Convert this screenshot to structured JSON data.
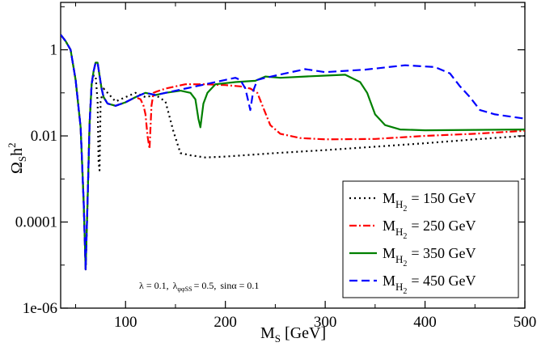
{
  "chart_data": {
    "type": "line",
    "title": "",
    "xlabel": "M",
    "xlabel_sub": "S",
    "xlabel_unit": "[GeV]",
    "ylabel": "Ω",
    "ylabel_sub": "S",
    "ylabel_tail": "h",
    "ylabel_sup": "2",
    "xlim": [
      35,
      500
    ],
    "ylim_log10": [
      -6,
      1.1
    ],
    "yscale": "log",
    "x_ticks": [
      100,
      200,
      300,
      400,
      500
    ],
    "x_tick_labels": [
      "100",
      "200",
      "300",
      "400",
      "500"
    ],
    "y_ticks_log10": [
      0,
      -2,
      -4,
      -6
    ],
    "y_tick_labels": [
      "1",
      "0.01",
      "0.0001",
      "1e-06"
    ],
    "legend_position": "bottom-right",
    "annotation": {
      "lambda": "λ = 0.1,",
      "lambda2_sym": "λ",
      "lambda2_sub": "φφSS",
      "lambda2_val": "= 0.5,",
      "sin": "sinα = 0.1"
    },
    "series": [
      {
        "name": "M_H2 = 150 GeV",
        "label_main": "M",
        "label_sub": "H",
        "label_subsub": "2",
        "label_value": "= 150 GeV",
        "color": "#000000",
        "dash": "2,4",
        "x": [
          35,
          40,
          45,
          50,
          55,
          58,
          60,
          62,
          64,
          66,
          68,
          70,
          72,
          73,
          74,
          75,
          78,
          82,
          90,
          100,
          110,
          120,
          130,
          140,
          148,
          155,
          165,
          180,
          200,
          250,
          300,
          350,
          400,
          450,
          500
        ],
        "y_log10": [
          0.35,
          0.2,
          0,
          -0.7,
          -1.8,
          -3.5,
          -5.1,
          -3.5,
          -1.7,
          -0.8,
          -0.6,
          -0.6,
          -1.2,
          -2.6,
          -2.8,
          -1.2,
          -0.9,
          -1.0,
          -1.2,
          -1.1,
          -1.0,
          -1.1,
          -1.05,
          -1.2,
          -1.9,
          -2.4,
          -2.45,
          -2.5,
          -2.48,
          -2.4,
          -2.33,
          -2.25,
          -2.17,
          -2.08,
          -2.0
        ]
      },
      {
        "name": "M_H2 = 250 GeV",
        "label_main": "M",
        "label_sub": "H",
        "label_subsub": "2",
        "label_value": "= 250 GeV",
        "color": "#ff0000",
        "dash": "9,3,2,3",
        "x": [
          35,
          40,
          45,
          50,
          55,
          58,
          60,
          62,
          64,
          66,
          68,
          70,
          72,
          74,
          76,
          78,
          82,
          90,
          100,
          110,
          115,
          118,
          120,
          122,
          124,
          126,
          128,
          130,
          140,
          160,
          180,
          200,
          215,
          225,
          232,
          238,
          245,
          255,
          275,
          300,
          350,
          400,
          450,
          500
        ],
        "y_log10": [
          0.35,
          0.2,
          0,
          -0.7,
          -1.8,
          -3.5,
          -5.1,
          -3.5,
          -1.7,
          -0.8,
          -0.5,
          -0.3,
          -0.3,
          -0.6,
          -0.9,
          -1.1,
          -1.25,
          -1.3,
          -1.22,
          -1.1,
          -1.15,
          -1.3,
          -1.5,
          -2.0,
          -2.3,
          -1.3,
          -1.0,
          -0.98,
          -0.9,
          -0.8,
          -0.8,
          -0.82,
          -0.85,
          -0.9,
          -1.0,
          -1.35,
          -1.75,
          -1.95,
          -2.05,
          -2.08,
          -2.07,
          -2.0,
          -1.95,
          -1.88
        ]
      },
      {
        "name": "M_H2 = 350 GeV",
        "label_main": "M",
        "label_sub": "H",
        "label_subsub": "2",
        "label_value": "= 350 GeV",
        "color": "#008000",
        "dash": "",
        "x": [
          35,
          40,
          45,
          50,
          55,
          58,
          60,
          62,
          64,
          66,
          68,
          70,
          72,
          74,
          76,
          78,
          82,
          90,
          100,
          110,
          120,
          130,
          140,
          155,
          165,
          170,
          173,
          175,
          178,
          182,
          190,
          210,
          230,
          240,
          255,
          280,
          300,
          320,
          335,
          342,
          350,
          360,
          375,
          400,
          450,
          500
        ],
        "y_log10": [
          0.35,
          0.2,
          0,
          -0.7,
          -1.8,
          -3.5,
          -5.1,
          -3.5,
          -1.7,
          -0.8,
          -0.5,
          -0.3,
          -0.3,
          -0.6,
          -0.9,
          -1.1,
          -1.25,
          -1.3,
          -1.22,
          -1.1,
          -1.0,
          -1.05,
          -1.0,
          -0.95,
          -1.0,
          -1.15,
          -1.6,
          -1.8,
          -1.25,
          -1.0,
          -0.8,
          -0.75,
          -0.72,
          -0.62,
          -0.65,
          -0.62,
          -0.6,
          -0.58,
          -0.75,
          -1.0,
          -1.5,
          -1.75,
          -1.85,
          -1.87,
          -1.86,
          -1.85
        ]
      },
      {
        "name": "M_H2 = 450 GeV",
        "label_main": "M",
        "label_sub": "H",
        "label_subsub": "2",
        "label_value": "= 450 GeV",
        "color": "#0000ff",
        "dash": "10,5",
        "x": [
          35,
          40,
          45,
          50,
          55,
          58,
          60,
          62,
          64,
          66,
          68,
          70,
          72,
          74,
          76,
          78,
          82,
          90,
          100,
          110,
          120,
          130,
          140,
          160,
          180,
          200,
          210,
          215,
          220,
          223,
          225,
          228,
          232,
          240,
          260,
          280,
          300,
          340,
          380,
          410,
          425,
          435,
          445,
          455,
          470,
          500
        ],
        "y_log10": [
          0.35,
          0.2,
          0,
          -0.7,
          -1.8,
          -3.5,
          -5.1,
          -3.5,
          -1.7,
          -0.8,
          -0.5,
          -0.3,
          -0.3,
          -0.6,
          -0.9,
          -1.1,
          -1.25,
          -1.3,
          -1.22,
          -1.1,
          -1.0,
          -1.05,
          -1.0,
          -0.9,
          -0.8,
          -0.7,
          -0.65,
          -0.7,
          -0.9,
          -1.2,
          -1.4,
          -0.95,
          -0.7,
          -0.65,
          -0.55,
          -0.45,
          -0.52,
          -0.46,
          -0.36,
          -0.4,
          -0.55,
          -0.85,
          -1.1,
          -1.4,
          -1.5,
          -1.6
        ]
      }
    ]
  }
}
